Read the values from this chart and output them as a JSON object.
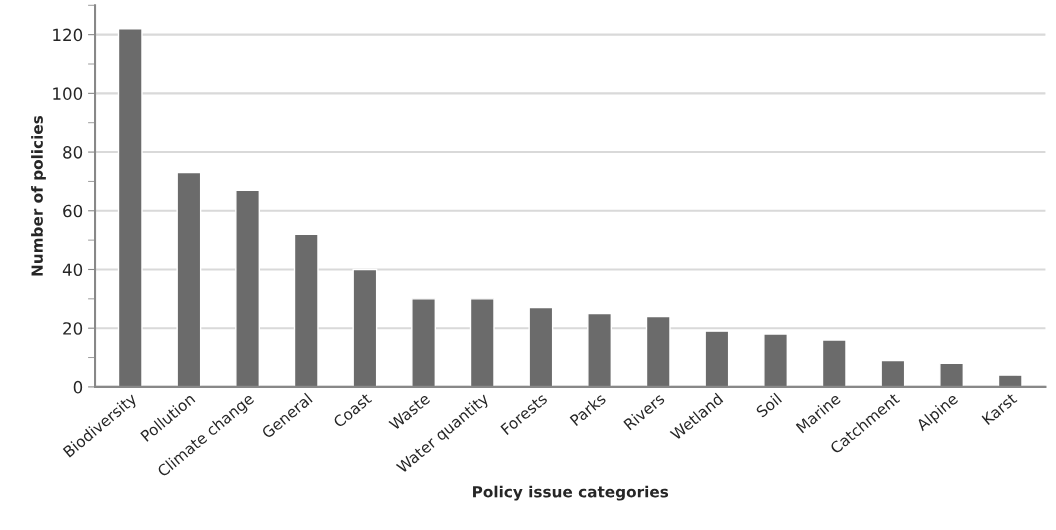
{
  "chart_data": {
    "type": "bar",
    "xlabel": "Policy issue categories",
    "ylabel": "Number of policies",
    "categories": [
      "Biodiversity",
      "Pollution",
      "Climate change",
      "General",
      "Coast",
      "Waste",
      "Water quantity",
      "Forests",
      "Parks",
      "Rivers",
      "Wetland",
      "Soil",
      "Marine",
      "Catchment",
      "Alpine",
      "Karst"
    ],
    "values": [
      122,
      73,
      67,
      52,
      40,
      30,
      30,
      27,
      25,
      24,
      19,
      18,
      16,
      9,
      8,
      4
    ],
    "color": "#6b6b6b",
    "ylim": [
      0,
      130
    ],
    "yticks": [
      0,
      {
        "value": 10,
        "label": null
      },
      20,
      {
        "value": 30,
        "label": null
      },
      40,
      {
        "value": 50,
        "label": null
      },
      60,
      {
        "value": 70,
        "label": null
      },
      80,
      {
        "value": 90,
        "label": null
      },
      100,
      {
        "value": 110,
        "label": null
      },
      120,
      {
        "value": 130,
        "label": null
      }
    ],
    "grid": "y"
  }
}
